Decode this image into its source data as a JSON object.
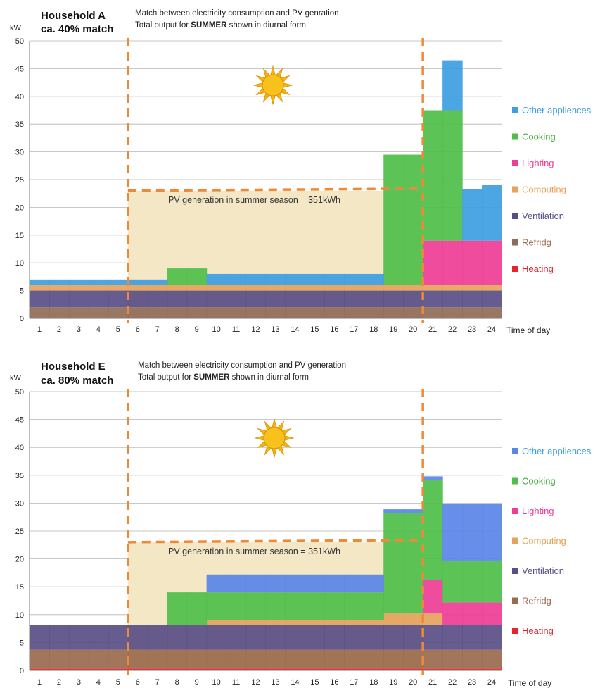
{
  "chart_data": [
    {
      "type": "stacked-area",
      "title": "Household A",
      "subtitle": "ca. 40% match",
      "note_line1": "Match between electricity consumption and PV genration",
      "note_line2_pre": "Total output for ",
      "note_line2_bold": "SUMMER",
      "note_line2_post": " shown in diurnal form",
      "ylabel": "kW",
      "xlabel": "Time of day",
      "ylim": [
        0,
        50
      ],
      "yticks": [
        "0",
        "5",
        "10",
        "15",
        "20",
        "25",
        "30",
        "35",
        "40",
        "45",
        "50"
      ],
      "x": [
        "1",
        "2",
        "3",
        "4",
        "5",
        "6",
        "7",
        "8",
        "9",
        "10",
        "11",
        "12",
        "13",
        "14",
        "15",
        "16",
        "17",
        "18",
        "19",
        "20",
        "21",
        "22",
        "23",
        "24"
      ],
      "pv_window": [
        6,
        20
      ],
      "pv_level": 23,
      "pv_label": "PV generation in summer season = 351kWh",
      "grid": true,
      "legend_position": "right",
      "series": [
        {
          "name": "Heating",
          "color": "#e8232d",
          "values": [
            0,
            0,
            0,
            0,
            0,
            0,
            0,
            0,
            0,
            0,
            0,
            0,
            0,
            0,
            0,
            0,
            0,
            0,
            0,
            0,
            0,
            0,
            0,
            0
          ]
        },
        {
          "name": "Refridg",
          "color": "#8f6b58",
          "values": [
            2,
            2,
            2,
            2,
            2,
            2,
            2,
            2,
            2,
            2,
            2,
            2,
            2,
            2,
            2,
            2,
            2,
            2,
            2,
            2,
            2,
            2,
            2,
            2
          ]
        },
        {
          "name": "Ventilation",
          "color": "#5a4e86",
          "values": [
            3,
            3,
            3,
            3,
            3,
            3,
            3,
            3,
            3,
            3,
            3,
            3,
            3,
            3,
            3,
            3,
            3,
            3,
            3,
            3,
            3,
            3,
            3,
            3
          ]
        },
        {
          "name": "Computing",
          "color": "#e5a35c",
          "values": [
            1,
            1,
            1,
            1,
            1,
            1,
            1,
            1,
            1,
            1,
            1,
            1,
            1,
            1,
            1,
            1,
            1,
            1,
            1,
            1,
            1,
            1,
            1,
            1
          ]
        },
        {
          "name": "Lighting",
          "color": "#ef3d96",
          "values": [
            0,
            0,
            0,
            0,
            0,
            0,
            0,
            0,
            0,
            0,
            0,
            0,
            0,
            0,
            0,
            0,
            0,
            0,
            0,
            0,
            8,
            8,
            8,
            8
          ]
        },
        {
          "name": "Cooking",
          "color": "#4ebf49",
          "values": [
            0,
            0,
            0,
            0,
            0,
            0,
            0,
            3,
            3,
            0,
            0,
            0,
            0,
            0,
            0,
            0,
            0,
            0,
            23.5,
            23.5,
            23.5,
            23.5,
            0,
            0
          ]
        },
        {
          "name": "Other appliences",
          "color": "#3d9ee2",
          "values": [
            1,
            1,
            1,
            1,
            1,
            1,
            1,
            0,
            0,
            2,
            2,
            2,
            2,
            2,
            2,
            2,
            2,
            2,
            0,
            0,
            0,
            9,
            9.3,
            10
          ]
        }
      ]
    },
    {
      "type": "stacked-area",
      "title": "Household E",
      "subtitle": "ca. 80% match",
      "note_line1": "Match between electricity consumption and PV generation",
      "note_line2_pre": "Total output for ",
      "note_line2_bold": "SUMMER",
      "note_line2_post": " shown in diurnal form",
      "ylabel": "kW",
      "xlabel": "Time of day",
      "ylim": [
        0,
        50
      ],
      "yticks": [
        "0",
        "5",
        "10",
        "15",
        "20",
        "25",
        "30",
        "35",
        "40",
        "45",
        "50"
      ],
      "x": [
        "1",
        "2",
        "3",
        "4",
        "5",
        "6",
        "7",
        "8",
        "9",
        "10",
        "11",
        "12",
        "13",
        "14",
        "15",
        "16",
        "17",
        "18",
        "19",
        "20",
        "21",
        "22",
        "23",
        "24"
      ],
      "pv_window": [
        6,
        20
      ],
      "pv_level": 23,
      "pv_label": "PV generation in summer season = 351kWh",
      "grid": true,
      "legend_position": "right",
      "series": [
        {
          "name": "Heating",
          "color": "#e8232d",
          "values": [
            0.3,
            0.3,
            0.3,
            0.3,
            0.3,
            0.3,
            0.3,
            0.3,
            0.3,
            0.3,
            0.3,
            0.3,
            0.3,
            0.3,
            0.3,
            0.3,
            0.3,
            0.3,
            0.3,
            0.3,
            0.3,
            0.3,
            0.3,
            0.3
          ]
        },
        {
          "name": "Refridg",
          "color": "#9a6a4c",
          "values": [
            3.4,
            3.4,
            3.4,
            3.4,
            3.4,
            3.4,
            3.4,
            3.4,
            3.4,
            3.4,
            3.4,
            3.4,
            3.4,
            3.4,
            3.4,
            3.4,
            3.4,
            3.4,
            3.4,
            3.4,
            3.4,
            3.4,
            3.4,
            3.4
          ]
        },
        {
          "name": "Ventilation",
          "color": "#5a4e86",
          "values": [
            4.5,
            4.5,
            4.5,
            4.5,
            4.5,
            4.5,
            4.5,
            4.5,
            4.5,
            4.5,
            4.5,
            4.5,
            4.5,
            4.5,
            4.5,
            4.5,
            4.5,
            4.5,
            4.5,
            4.5,
            4.5,
            4.5,
            4.5,
            4.5
          ]
        },
        {
          "name": "Computing",
          "color": "#e5a35c",
          "values": [
            0,
            0,
            0,
            0,
            0,
            0,
            0,
            0,
            0,
            0.8,
            0.8,
            0.8,
            0.8,
            0.8,
            0.8,
            0.8,
            0.8,
            0.8,
            2,
            2,
            2,
            0,
            0,
            0
          ]
        },
        {
          "name": "Lighting",
          "color": "#ef3d96",
          "values": [
            0,
            0,
            0,
            0,
            0,
            0,
            0,
            0,
            0,
            0,
            0,
            0,
            0,
            0,
            0,
            0,
            0,
            0,
            0,
            0,
            6,
            4,
            4,
            4
          ]
        },
        {
          "name": "Cooking",
          "color": "#4ebf49",
          "values": [
            0,
            0,
            0,
            0,
            0,
            0,
            0,
            5.8,
            5.8,
            5,
            5,
            5,
            5,
            5,
            5,
            5,
            5,
            5,
            18,
            18,
            18,
            7.5,
            7.5,
            7.5
          ]
        },
        {
          "name": "Other appliences",
          "color": "#5a86e8",
          "values": [
            0,
            0,
            0,
            0,
            0,
            0,
            0,
            0,
            0,
            3.2,
            3.2,
            3.2,
            3.2,
            3.2,
            3.2,
            3.2,
            3.2,
            3.2,
            0.7,
            0.7,
            0.6,
            10.2,
            10.2,
            10.2
          ]
        }
      ]
    }
  ]
}
